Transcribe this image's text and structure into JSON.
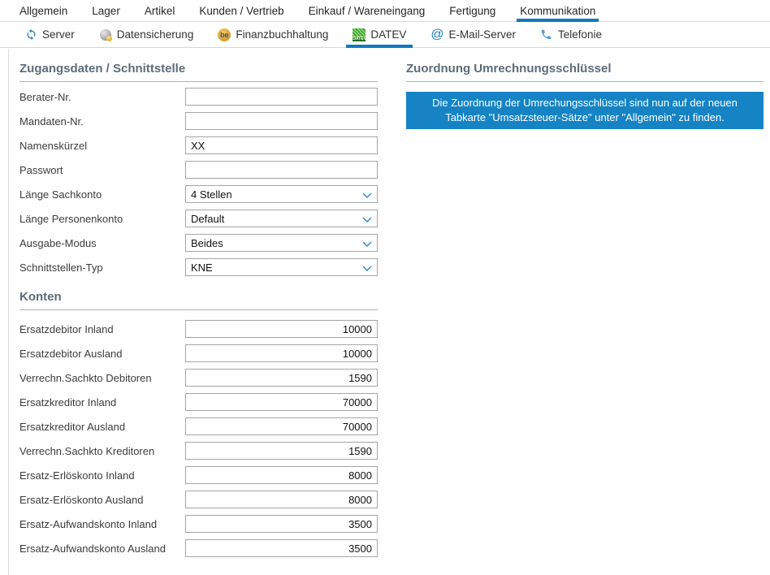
{
  "colors": {
    "accent": "#1079c0",
    "notice_bg": "#1583c4",
    "datev_green": "#3fae2a",
    "icon_blue": "#1e7fc2"
  },
  "main_tabs": {
    "items": [
      {
        "label": "Allgemein",
        "active": false
      },
      {
        "label": "Lager",
        "active": false
      },
      {
        "label": "Artikel",
        "active": false
      },
      {
        "label": "Kunden / Vertrieb",
        "active": false
      },
      {
        "label": "Einkauf / Wareneingang",
        "active": false
      },
      {
        "label": "Fertigung",
        "active": false
      },
      {
        "label": "Kommunikation",
        "active": true
      }
    ]
  },
  "sub_tabs": {
    "items": [
      {
        "label": "Server",
        "icon": "sync-icon",
        "active": false
      },
      {
        "label": "Datensicherung",
        "icon": "database-sphere-icon",
        "active": false
      },
      {
        "label": "Finanzbuchhaltung",
        "icon": "be-badge-icon",
        "active": false
      },
      {
        "label": "DATEV",
        "icon": "datev-icon",
        "active": true
      },
      {
        "label": "E-Mail-Server",
        "icon": "at-icon",
        "active": false
      },
      {
        "label": "Telefonie",
        "icon": "phone-icon",
        "active": false
      }
    ]
  },
  "left": {
    "sections": [
      {
        "title": "Zugangsdaten / Schnittstelle",
        "value_align": "left",
        "fields": [
          {
            "label": "Berater-Nr.",
            "type": "text",
            "value": ""
          },
          {
            "label": "Mandaten-Nr.",
            "type": "text",
            "value": ""
          },
          {
            "label": "Namenskürzel",
            "type": "text",
            "value": "XX"
          },
          {
            "label": "Passwort",
            "type": "text",
            "value": ""
          },
          {
            "label": "Länge Sachkonto",
            "type": "select",
            "value": "4 Stellen"
          },
          {
            "label": "Länge Personenkonto",
            "type": "select",
            "value": "Default"
          },
          {
            "label": "Ausgabe-Modus",
            "type": "select",
            "value": "Beides"
          },
          {
            "label": "Schnittstellen-Typ",
            "type": "select",
            "value": "KNE"
          }
        ]
      },
      {
        "title": "Konten",
        "value_align": "right",
        "fields": [
          {
            "label": "Ersatzdebitor Inland",
            "type": "text",
            "value": "10000"
          },
          {
            "label": "Ersatzdebitor Ausland",
            "type": "text",
            "value": "10000"
          },
          {
            "label": "Verrechn.Sachkto Debitoren",
            "type": "text",
            "value": "1590"
          },
          {
            "label": "Ersatzkreditor Inland",
            "type": "text",
            "value": "70000"
          },
          {
            "label": "Ersatzkreditor Ausland",
            "type": "text",
            "value": "70000"
          },
          {
            "label": "Verrechn.Sachkto Kreditoren",
            "type": "text",
            "value": "1590"
          },
          {
            "label": "Ersatz-Erlöskonto Inland",
            "type": "text",
            "value": "8000"
          },
          {
            "label": "Ersatz-Erlöskonto Ausland",
            "type": "text",
            "value": "8000"
          },
          {
            "label": "Ersatz-Aufwandskonto Inland",
            "type": "text",
            "value": "3500"
          },
          {
            "label": "Ersatz-Aufwandskonto Ausland",
            "type": "text",
            "value": "3500"
          }
        ]
      }
    ]
  },
  "right": {
    "title": "Zuordnung Umrechnungsschlüssel",
    "notice": "Die Zuordnung der Umrechungsschlüssel sind nun auf der neuen Tabkarte \"Umsatzsteuer-Sätze\" unter \"Allgemein\" zu finden."
  }
}
